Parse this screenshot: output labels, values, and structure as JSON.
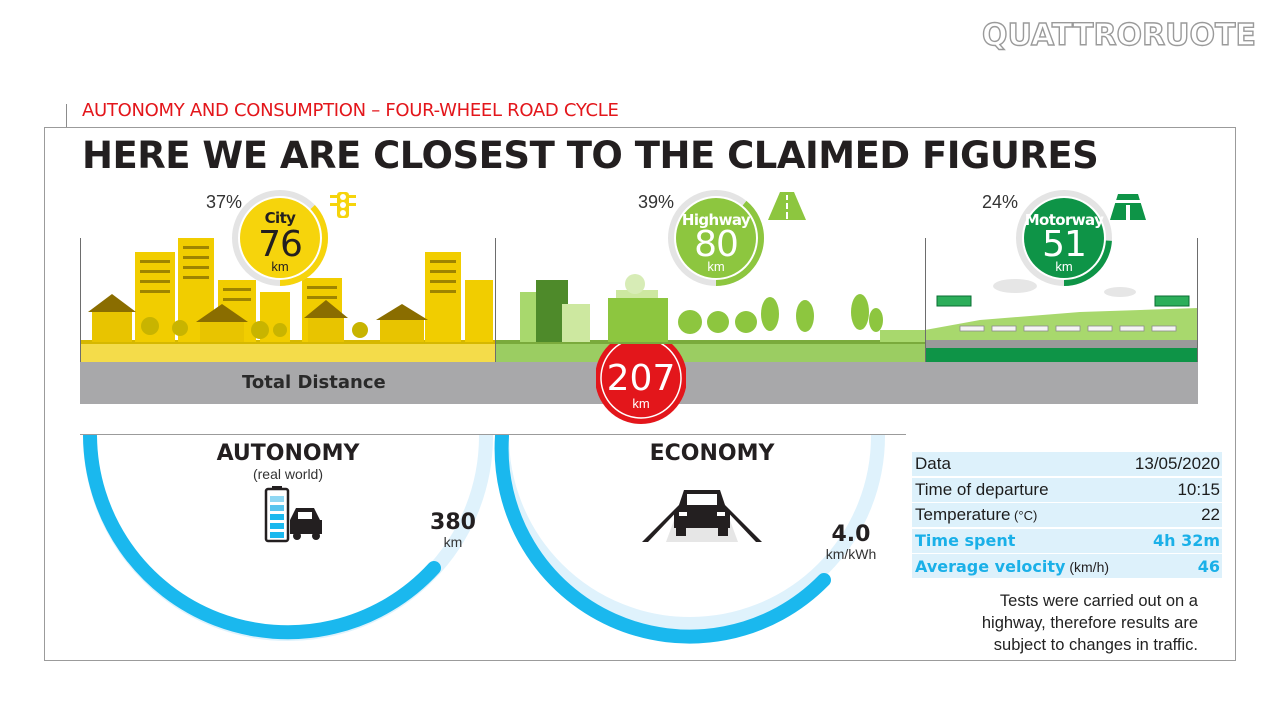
{
  "brand": {
    "logo_text": "QUATTRORUOTE"
  },
  "header": {
    "subtitle": "AUTONOMY AND CONSUMPTION – FOUR-WHEEL ROAD CYCLE",
    "headline": "HERE WE ARE CLOSEST TO THE CLAIMED FIGURES"
  },
  "colors": {
    "city": "#f6d40c",
    "highway": "#8dc63f",
    "motorway": "#0e9447",
    "accent_red": "#e3161b",
    "accent_blue": "#1ab0e8",
    "road_gray": "#a8a8aa"
  },
  "segments": [
    {
      "name": "City",
      "percent": "37%",
      "value": "76",
      "unit": "km",
      "icon": "traffic-light-icon",
      "share": 0.37
    },
    {
      "name": "Highway",
      "percent": "39%",
      "value": "80",
      "unit": "km",
      "icon": "road-icon",
      "share": 0.39
    },
    {
      "name": "Motorway",
      "percent": "24%",
      "value": "51",
      "unit": "km",
      "icon": "motorway-icon",
      "share": 0.24
    }
  ],
  "total": {
    "label": "Total Distance",
    "value": "207",
    "unit": "km"
  },
  "autonomy": {
    "title": "AUTONOMY",
    "subtitle": "(real world)",
    "value": "380",
    "unit": "km",
    "icon": "battery-car-icon"
  },
  "economy": {
    "title": "ECONOMY",
    "value": "4.0",
    "unit": "km/kWh",
    "icon": "car-on-road-icon"
  },
  "details": [
    {
      "label": "Data",
      "unit": "",
      "value": "13/05/2020",
      "highlight": false
    },
    {
      "label": "Time of departure",
      "unit": "",
      "value": "10:15",
      "highlight": false
    },
    {
      "label": "Temperature",
      "unit": "(°C)",
      "value": "22",
      "highlight": false
    },
    {
      "label": "Time spent",
      "unit": "",
      "value": "4h 32m",
      "highlight": true
    },
    {
      "label": "Average velocity",
      "unit": "(km/h)",
      "value": "46",
      "highlight": true
    }
  ],
  "note": "Tests were carried out on a highway, therefore results are subject to changes in traffic."
}
